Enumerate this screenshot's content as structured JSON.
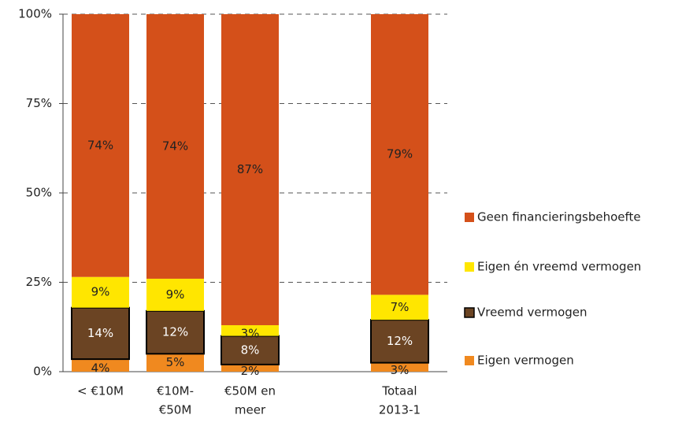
{
  "chart_data": {
    "type": "stacked_bar",
    "categories": [
      [
        "< €10M"
      ],
      [
        "€10M-",
        "€50M"
      ],
      [
        "€50M en",
        "meer"
      ],
      null,
      [
        "Totaal",
        "2013-1"
      ]
    ],
    "series": [
      {
        "name": "Eigen vermogen",
        "color": "#f0891f",
        "values": [
          3.5,
          5,
          2,
          null,
          2.5
        ],
        "value_labels": [
          "4%",
          "5%",
          "2%",
          null,
          "3%"
        ]
      },
      {
        "name": "Vreemd vermogen",
        "color": "#6b4423",
        "values": [
          14.4,
          12,
          8,
          null,
          12
        ],
        "value_labels": [
          "14%",
          "12%",
          "8%",
          null,
          "12%"
        ]
      },
      {
        "name": "Eigen én vreemd vermogen",
        "color": "#ffe600",
        "values": [
          8.6,
          9,
          3,
          null,
          7
        ],
        "value_labels": [
          "9%",
          "9%",
          "3%",
          null,
          "7%"
        ]
      },
      {
        "name": "Geen financieringsbehoefte",
        "color": "#d4501a",
        "values": [
          73.5,
          74,
          87,
          null,
          78.5
        ],
        "value_labels": [
          "74%",
          "74%",
          "87%",
          null,
          "79%"
        ]
      }
    ],
    "ylim": [
      0,
      100
    ],
    "yticks": [
      {
        "value": 0,
        "label": "0%"
      },
      {
        "value": 25,
        "label": "25%"
      },
      {
        "value": 50,
        "label": "50%"
      },
      {
        "value": 75,
        "label": "75%"
      },
      {
        "value": 100,
        "label": "100%"
      }
    ],
    "grid": true,
    "legend": "right"
  }
}
